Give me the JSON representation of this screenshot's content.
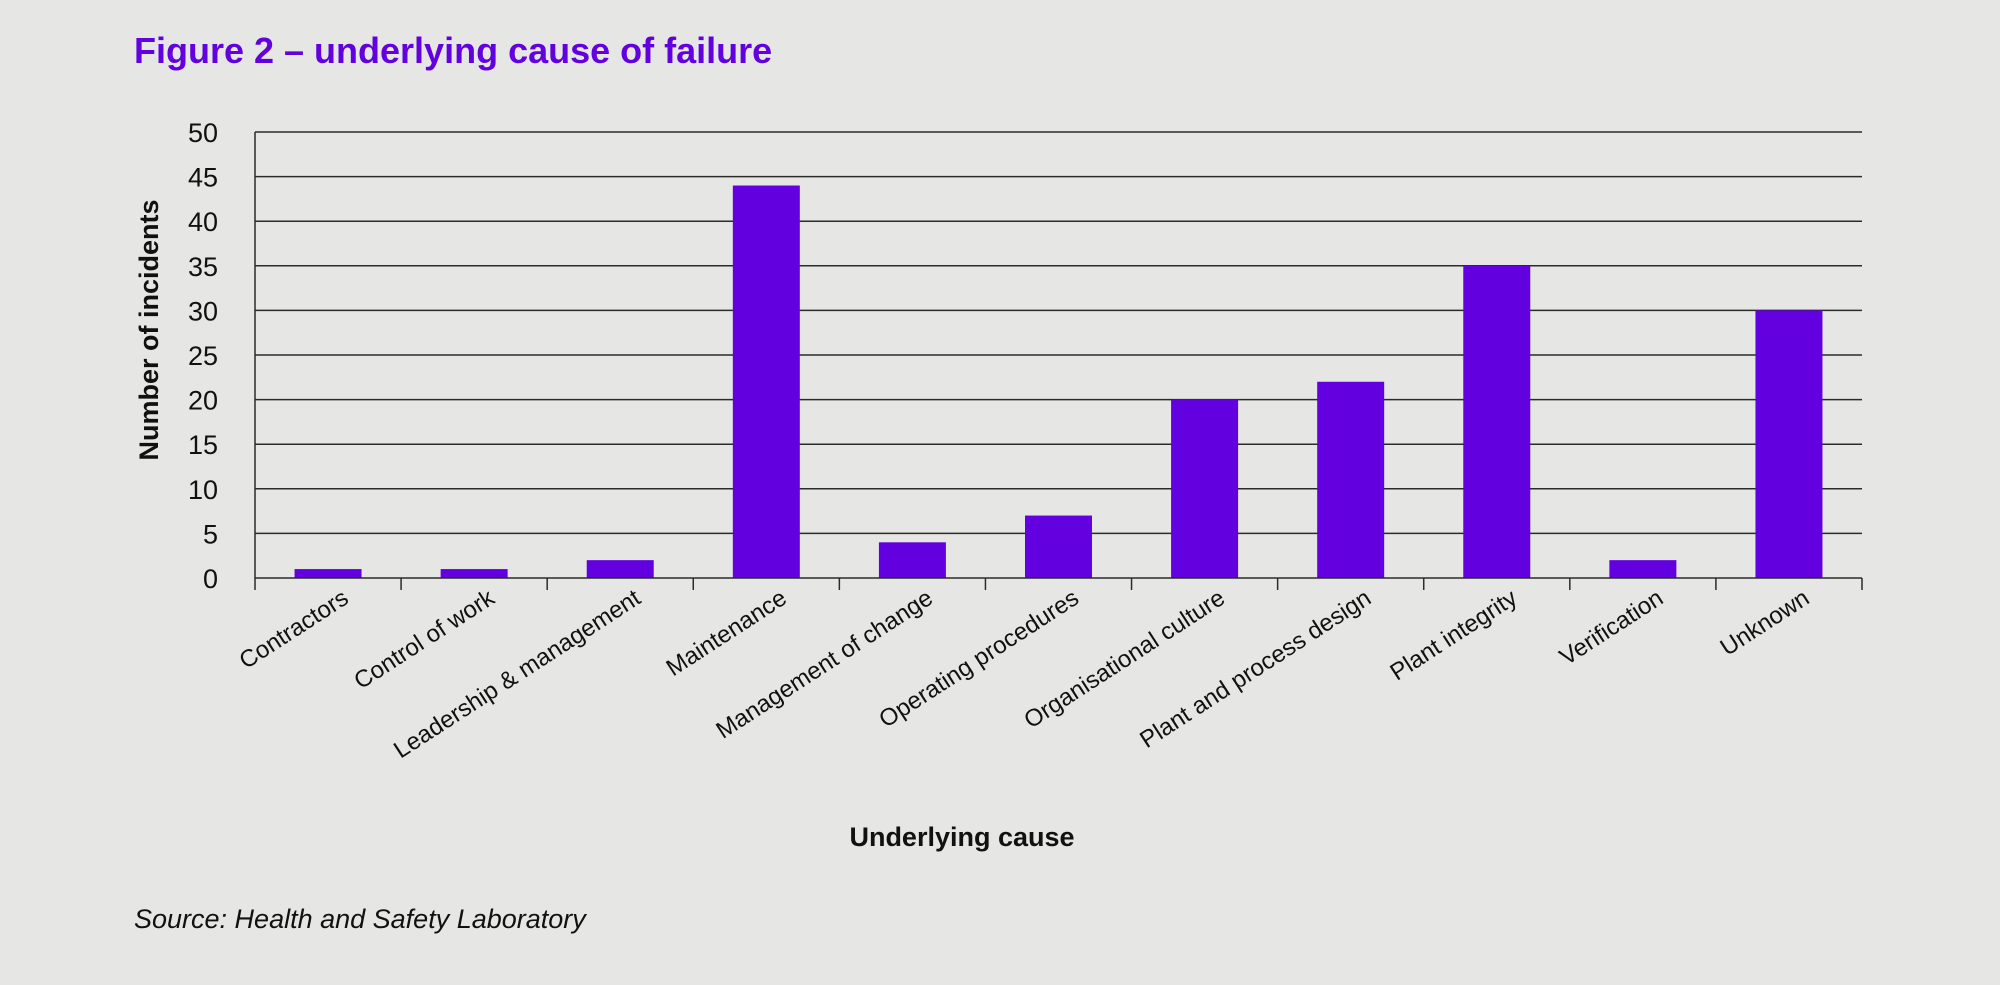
{
  "figure": {
    "title": "Figure 2 – underlying cause of failure",
    "source": "Source: Health and Safety Laboratory"
  },
  "colors": {
    "background": "#e6e7e5",
    "bar": "#6200e0",
    "title": "#6200e0",
    "gridline": "#2b2b2b"
  },
  "chart_data": {
    "type": "bar",
    "title": "Figure 2 – underlying cause of failure",
    "xlabel": "Underlying cause",
    "ylabel": "Number of incidents",
    "ylim": [
      0,
      50
    ],
    "yticks": [
      0,
      5,
      10,
      15,
      20,
      25,
      30,
      35,
      40,
      45,
      50
    ],
    "grid": true,
    "legend": "none",
    "categories": [
      "Contractors",
      "Control of work",
      "Leadership & management",
      "Maintenance",
      "Management of change",
      "Operating procedures",
      "Organisational culture",
      "Plant and process design",
      "Plant integrity",
      "Verification",
      "Unknown"
    ],
    "values": [
      1,
      1,
      2,
      44,
      4,
      7,
      20,
      22,
      35,
      2,
      30
    ]
  }
}
